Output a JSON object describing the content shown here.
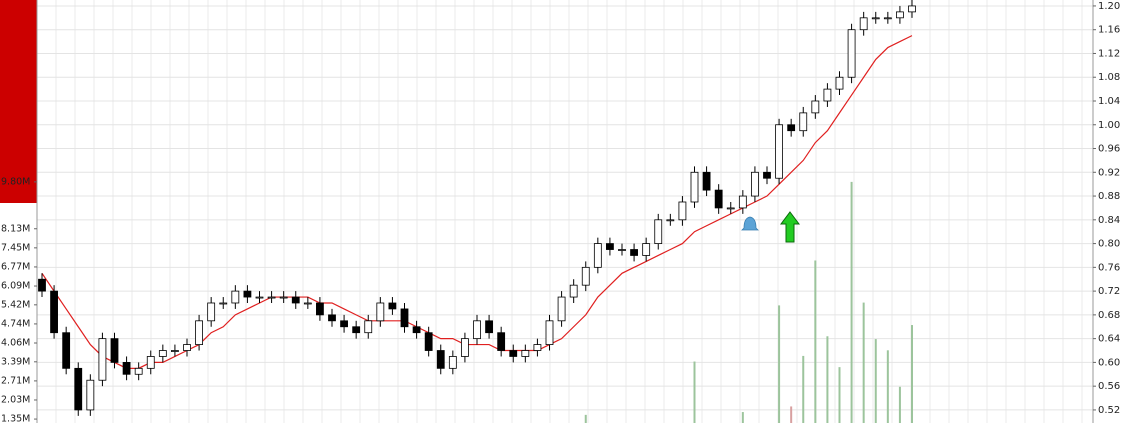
{
  "chart_data": {
    "type": "candlestick",
    "ylim": [
      0.498,
      1.21
    ],
    "yticks": [
      {
        "value": 1.2,
        "label": "1.20"
      },
      1.16,
      1.12,
      1.08,
      1.04,
      {
        "value": 1.0,
        "label": "1.00"
      },
      0.96,
      0.92,
      0.88,
      0.84,
      {
        "value": 0.8,
        "label": "0.80"
      },
      0.76,
      0.72,
      0.68,
      0.64,
      {
        "value": 0.6,
        "label": "0.60"
      },
      0.56,
      0.52
    ],
    "grid": true,
    "up_color": "#ffffff",
    "down_color": "#000000",
    "open": [
      0.74,
      0.72,
      0.65,
      0.59,
      0.52,
      0.57,
      0.64,
      0.6,
      0.58,
      0.59,
      0.61,
      0.62,
      0.62,
      0.63,
      0.67,
      0.7,
      0.7,
      0.72,
      0.71,
      0.71,
      0.71,
      0.71,
      0.7,
      0.7,
      0.68,
      0.67,
      0.66,
      0.65,
      0.67,
      0.7,
      0.69,
      0.66,
      0.65,
      0.62,
      0.59,
      0.61,
      0.64,
      0.67,
      0.65,
      0.62,
      0.61,
      0.62,
      0.63,
      0.67,
      0.71,
      0.73,
      0.76,
      0.8,
      0.79,
      0.79,
      0.78,
      0.8,
      0.84,
      0.84,
      0.87,
      0.92,
      0.89,
      0.86,
      0.86,
      0.88,
      0.92,
      0.91,
      1.0,
      0.99,
      1.02,
      1.04,
      1.06,
      1.08,
      1.16,
      1.18,
      1.18,
      1.18,
      1.19
    ],
    "high": [
      0.75,
      0.73,
      0.66,
      0.6,
      0.58,
      0.65,
      0.65,
      0.61,
      0.6,
      0.62,
      0.63,
      0.63,
      0.64,
      0.68,
      0.71,
      0.71,
      0.73,
      0.73,
      0.72,
      0.72,
      0.72,
      0.72,
      0.71,
      0.71,
      0.69,
      0.68,
      0.67,
      0.68,
      0.71,
      0.71,
      0.7,
      0.67,
      0.66,
      0.63,
      0.62,
      0.65,
      0.68,
      0.68,
      0.66,
      0.63,
      0.63,
      0.64,
      0.68,
      0.72,
      0.74,
      0.77,
      0.81,
      0.81,
      0.8,
      0.8,
      0.81,
      0.85,
      0.85,
      0.88,
      0.93,
      0.93,
      0.9,
      0.87,
      0.89,
      0.93,
      0.93,
      1.01,
      1.01,
      1.03,
      1.05,
      1.07,
      1.09,
      1.17,
      1.19,
      1.19,
      1.19,
      1.2,
      1.21
    ],
    "low": [
      0.71,
      0.64,
      0.58,
      0.51,
      0.51,
      0.56,
      0.59,
      0.57,
      0.57,
      0.58,
      0.6,
      0.61,
      0.61,
      0.62,
      0.66,
      0.69,
      0.69,
      0.7,
      0.7,
      0.7,
      0.7,
      0.69,
      0.69,
      0.67,
      0.66,
      0.65,
      0.64,
      0.64,
      0.66,
      0.68,
      0.65,
      0.64,
      0.61,
      0.58,
      0.58,
      0.6,
      0.63,
      0.64,
      0.61,
      0.6,
      0.6,
      0.61,
      0.62,
      0.66,
      0.7,
      0.72,
      0.75,
      0.78,
      0.78,
      0.77,
      0.77,
      0.79,
      0.83,
      0.83,
      0.86,
      0.88,
      0.85,
      0.85,
      0.85,
      0.87,
      0.9,
      0.9,
      0.98,
      0.98,
      1.01,
      1.03,
      1.05,
      1.07,
      1.15,
      1.17,
      1.17,
      1.17,
      1.18
    ],
    "close": [
      0.72,
      0.65,
      0.59,
      0.52,
      0.57,
      0.64,
      0.6,
      0.58,
      0.59,
      0.61,
      0.62,
      0.62,
      0.63,
      0.67,
      0.7,
      0.7,
      0.72,
      0.71,
      0.71,
      0.71,
      0.71,
      0.7,
      0.7,
      0.68,
      0.67,
      0.66,
      0.65,
      0.67,
      0.7,
      0.69,
      0.66,
      0.65,
      0.62,
      0.59,
      0.61,
      0.64,
      0.67,
      0.65,
      0.62,
      0.61,
      0.62,
      0.63,
      0.67,
      0.71,
      0.73,
      0.76,
      0.8,
      0.79,
      0.79,
      0.78,
      0.8,
      0.84,
      0.84,
      0.87,
      0.92,
      0.89,
      0.86,
      0.86,
      0.88,
      0.92,
      0.91,
      1.0,
      0.99,
      1.02,
      1.04,
      1.06,
      1.08,
      1.16,
      1.18,
      1.18,
      1.18,
      1.19,
      1.2
    ],
    "ma_color": "#e02020",
    "ma_values": [
      0.75,
      0.72,
      0.69,
      0.66,
      0.63,
      0.61,
      0.6,
      0.59,
      0.59,
      0.6,
      0.6,
      0.61,
      0.62,
      0.63,
      0.65,
      0.66,
      0.68,
      0.69,
      0.7,
      0.71,
      0.71,
      0.71,
      0.71,
      0.7,
      0.7,
      0.69,
      0.68,
      0.67,
      0.67,
      0.67,
      0.67,
      0.66,
      0.65,
      0.64,
      0.64,
      0.63,
      0.63,
      0.63,
      0.62,
      0.62,
      0.62,
      0.62,
      0.63,
      0.64,
      0.66,
      0.68,
      0.71,
      0.73,
      0.75,
      0.76,
      0.77,
      0.78,
      0.79,
      0.8,
      0.82,
      0.83,
      0.84,
      0.85,
      0.86,
      0.87,
      0.88,
      0.9,
      0.92,
      0.94,
      0.97,
      0.99,
      1.02,
      1.05,
      1.08,
      1.11,
      1.13,
      1.14,
      1.15
    ],
    "volume_up_color": "#9cc49c",
    "volume_down_color": "#d8a0a0",
    "volume_lim": [
      1.21,
      16.28
    ],
    "volume_ticks": [
      {
        "value": 9.8,
        "label": "9.80M"
      },
      {
        "value": 8.13,
        "label": "8.13M"
      },
      {
        "value": 7.45,
        "label": "7.45M"
      },
      {
        "value": 6.77,
        "label": "6.77M"
      },
      {
        "value": 6.09,
        "label": "6.09M"
      },
      {
        "value": 5.42,
        "label": "5.42M"
      },
      {
        "value": 4.74,
        "label": "4.74M"
      },
      {
        "value": 4.06,
        "label": "4.06M"
      },
      {
        "value": 3.39,
        "label": "3.39M"
      },
      {
        "value": 2.71,
        "label": "2.71M"
      },
      {
        "value": 2.03,
        "label": "2.03M"
      },
      {
        "value": 1.35,
        "label": "1.35M"
      }
    ],
    "volume": [
      1.2,
      1.2,
      1.2,
      1.2,
      1.2,
      1.2,
      1.2,
      1.2,
      1.2,
      1.2,
      1.2,
      1.2,
      1.2,
      1.2,
      1.2,
      1.2,
      1.2,
      1.2,
      1.2,
      1.2,
      1.2,
      1.2,
      1.2,
      1.2,
      1.2,
      1.2,
      1.2,
      1.2,
      1.2,
      1.2,
      1.2,
      1.2,
      1.2,
      1.2,
      1.2,
      1.2,
      1.2,
      1.2,
      1.2,
      1.2,
      1.2,
      1.2,
      1.2,
      1.2,
      1.2,
      1.5,
      1.2,
      1.2,
      1.2,
      1.2,
      1.2,
      1.2,
      1.2,
      1.2,
      3.4,
      1.2,
      1.2,
      1.2,
      1.6,
      1.2,
      1.2,
      5.4,
      1.8,
      3.6,
      7.0,
      4.3,
      3.2,
      9.8,
      5.5,
      4.2,
      3.8,
      2.5,
      4.7
    ]
  }
}
